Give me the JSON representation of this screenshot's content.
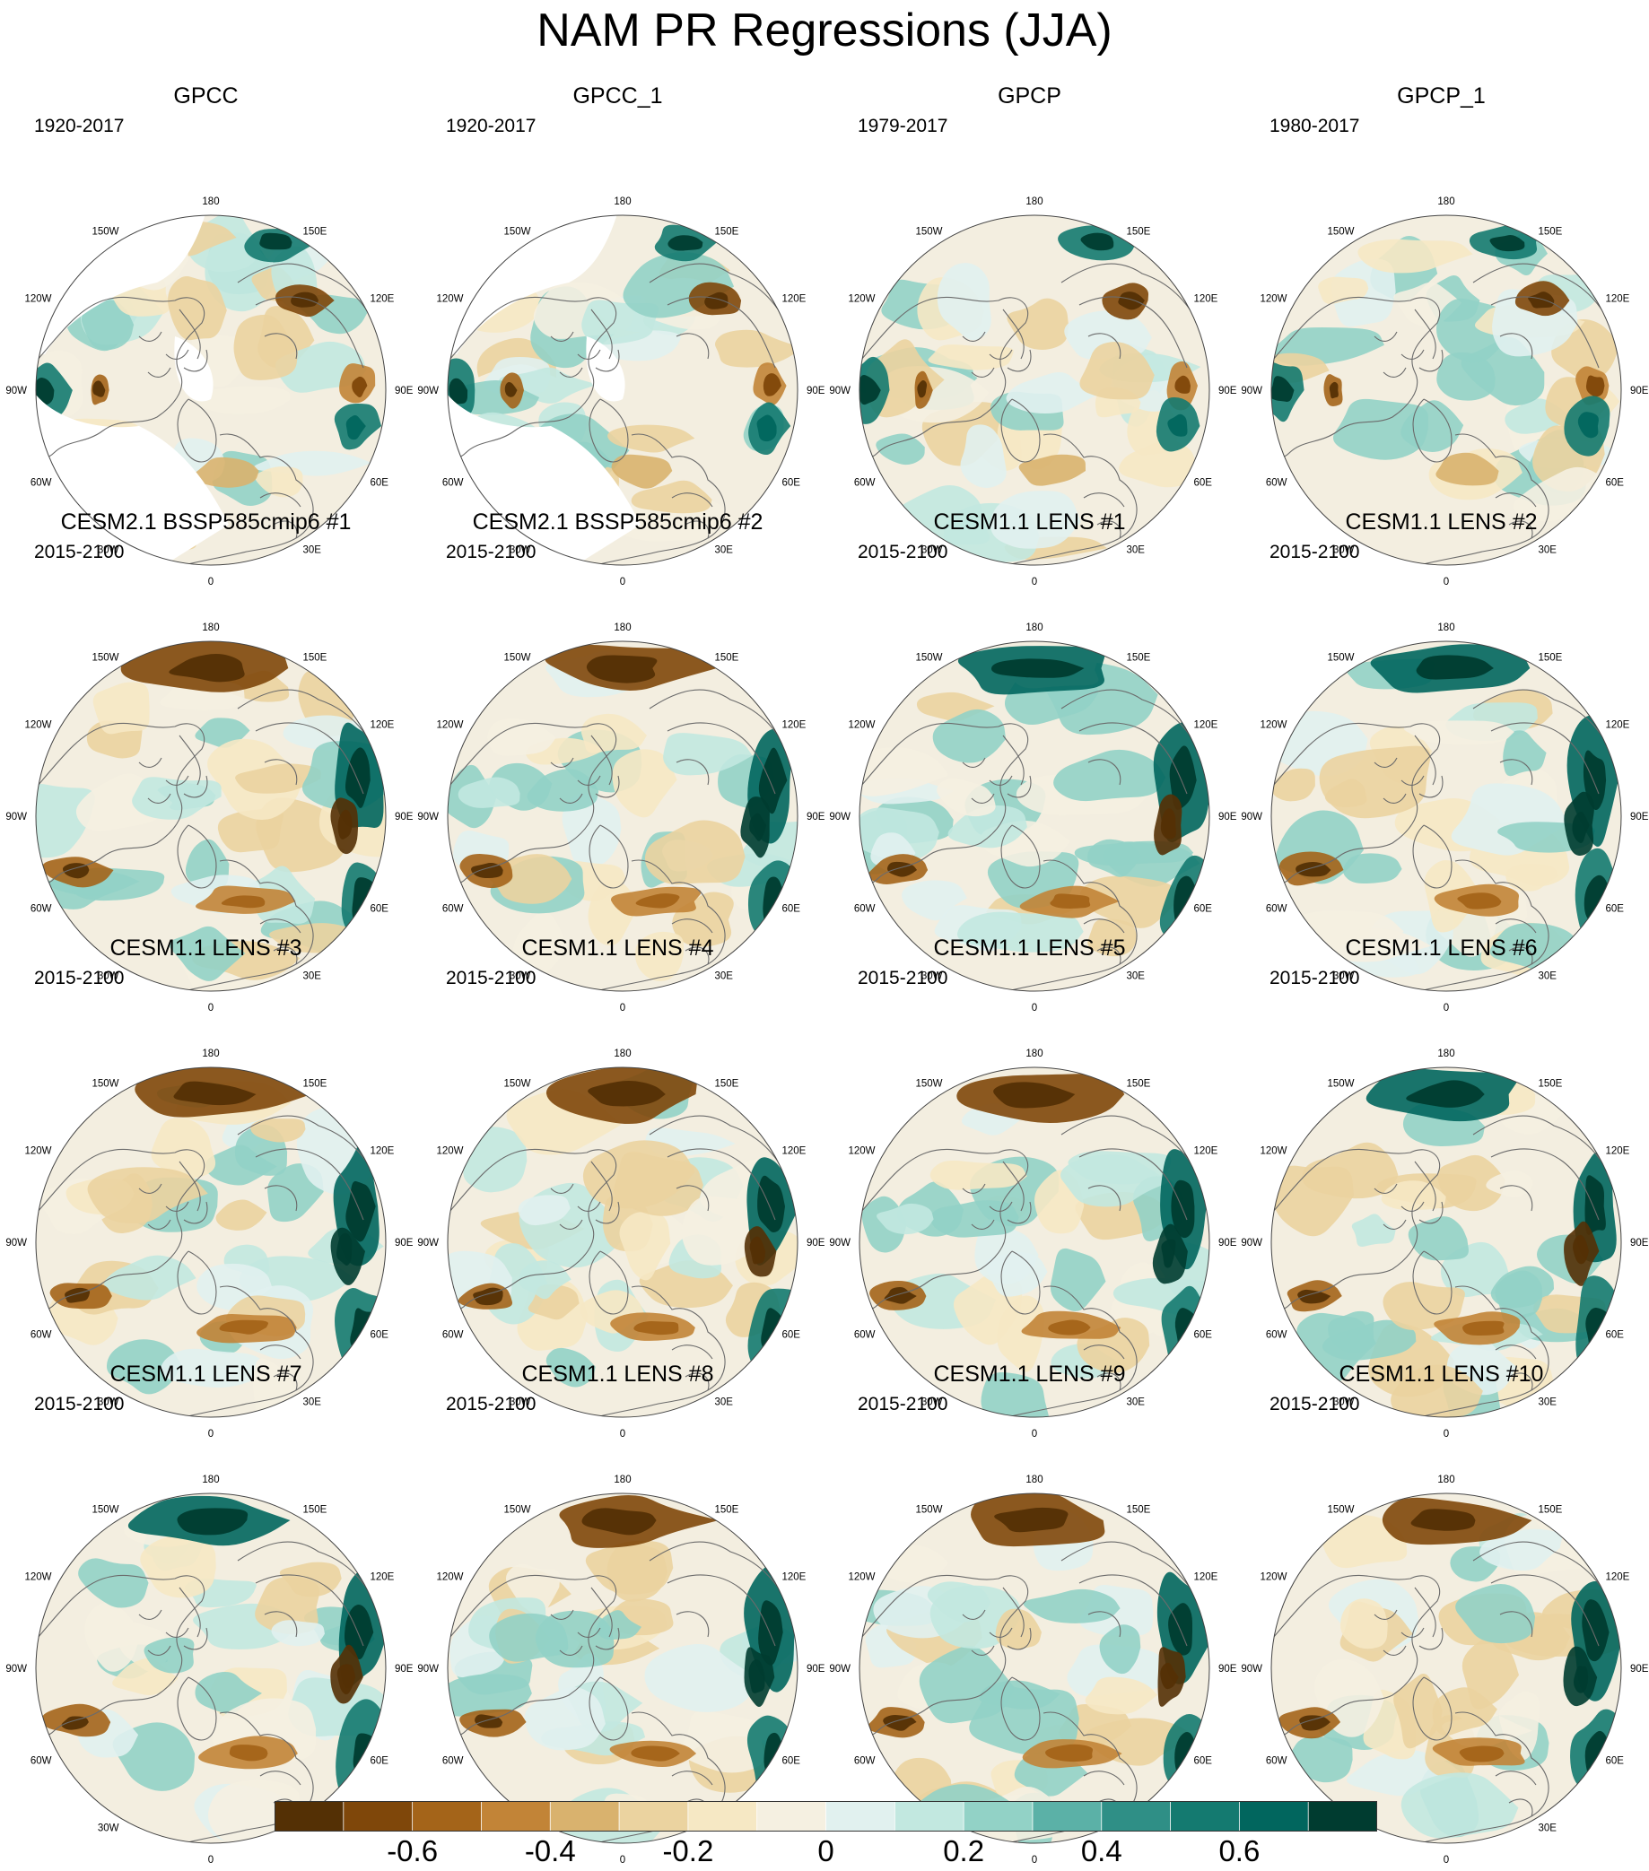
{
  "title": "NAM PR Regressions (JJA)",
  "panels": [
    {
      "title": "GPCC",
      "period": "1920-2017",
      "style": "obs_gpcc"
    },
    {
      "title": "GPCC_1",
      "period": "1920-2017",
      "style": "obs_gpcc"
    },
    {
      "title": "GPCP",
      "period": "1979-2017",
      "style": "obs_gpcp"
    },
    {
      "title": "GPCP_1",
      "period": "1980-2017",
      "style": "obs_gpcp"
    },
    {
      "title": "CESM2.1 BSSP585cmip6 #1",
      "period": "2015-2100",
      "style": "model"
    },
    {
      "title": "CESM2.1 BSSP585cmip6 #2",
      "period": "2015-2100",
      "style": "model"
    },
    {
      "title": "CESM1.1 LENS #1",
      "period": "2015-2100",
      "style": "model"
    },
    {
      "title": "CESM1.1 LENS #2",
      "period": "2015-2100",
      "style": "model"
    },
    {
      "title": "CESM1.1 LENS #3",
      "period": "2015-2100",
      "style": "model"
    },
    {
      "title": "CESM1.1 LENS #4",
      "period": "2015-2100",
      "style": "model"
    },
    {
      "title": "CESM1.1 LENS #5",
      "period": "2015-2100",
      "style": "model"
    },
    {
      "title": "CESM1.1 LENS #6",
      "period": "2015-2100",
      "style": "model"
    },
    {
      "title": "CESM1.1 LENS #7",
      "period": "2015-2100",
      "style": "model"
    },
    {
      "title": "CESM1.1 LENS #8",
      "period": "2015-2100",
      "style": "model"
    },
    {
      "title": "CESM1.1 LENS #9",
      "period": "2015-2100",
      "style": "model"
    },
    {
      "title": "CESM1.1 LENS #10",
      "period": "2015-2100",
      "style": "model"
    }
  ],
  "longitude_labels": [
    "180",
    "150E",
    "120E",
    "90E",
    "60E",
    "30E",
    "0",
    "30W",
    "60W",
    "90W",
    "120W",
    "150W"
  ],
  "colorbar": {
    "colors": [
      "#543005",
      "#7f470a",
      "#a46419",
      "#c28437",
      "#d9b26e",
      "#ebd3a0",
      "#f6e8c4",
      "#f5f0e1",
      "#e1f1ef",
      "#c2e8e0",
      "#92d2c6",
      "#5bb1a7",
      "#2f8f86",
      "#147a70",
      "#01665e",
      "#003c30"
    ],
    "tick_labels": [
      "-0.6",
      "-0.4",
      "-0.2",
      "0",
      "0.2",
      "0.4",
      "0.6"
    ],
    "tick_values": [
      -0.6,
      -0.4,
      -0.2,
      0,
      0.2,
      0.4,
      0.6
    ],
    "levels": [
      -0.7,
      -0.6,
      -0.5,
      -0.4,
      -0.3,
      -0.2,
      -0.1,
      -0.05,
      0,
      0.05,
      0.1,
      0.2,
      0.3,
      0.4,
      0.5,
      0.6,
      0.7
    ]
  }
}
